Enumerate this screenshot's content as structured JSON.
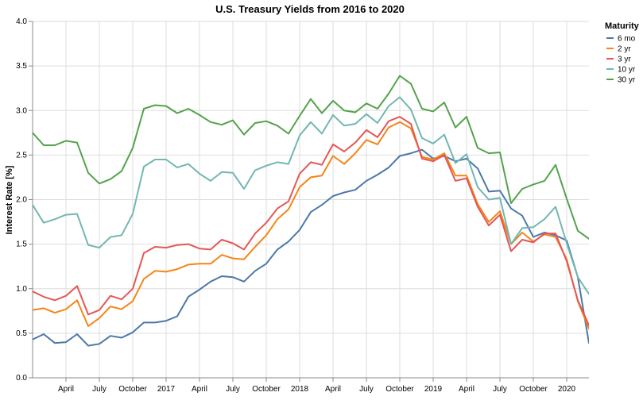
{
  "chart_data": {
    "type": "line",
    "title": "U.S. Treasury Yields from 2016 to 2020",
    "xlabel": "",
    "ylabel": "Interest Rate [%]",
    "ylim": [
      0,
      4
    ],
    "yticks": [
      "0.0",
      "0.5",
      "1.0",
      "1.5",
      "2.0",
      "2.5",
      "3.0",
      "3.5",
      "4.0"
    ],
    "xtick_labels": [
      "April",
      "July",
      "October",
      "2017",
      "April",
      "July",
      "October",
      "2018",
      "April",
      "July",
      "October",
      "2019",
      "April",
      "July",
      "October",
      "2020"
    ],
    "grid": true,
    "legend": {
      "title": "Maturity",
      "position": "right"
    },
    "x": [
      "2016-01",
      "2016-02",
      "2016-03",
      "2016-04",
      "2016-05",
      "2016-06",
      "2016-07",
      "2016-08",
      "2016-09",
      "2016-10",
      "2016-11",
      "2016-12",
      "2017-01",
      "2017-02",
      "2017-03",
      "2017-04",
      "2017-05",
      "2017-06",
      "2017-07",
      "2017-08",
      "2017-09",
      "2017-10",
      "2017-11",
      "2017-12",
      "2018-01",
      "2018-02",
      "2018-03",
      "2018-04",
      "2018-05",
      "2018-06",
      "2018-07",
      "2018-08",
      "2018-09",
      "2018-10",
      "2018-11",
      "2018-12",
      "2019-01",
      "2019-02",
      "2019-03",
      "2019-04",
      "2019-05",
      "2019-06",
      "2019-07",
      "2019-08",
      "2019-09",
      "2019-10",
      "2019-11",
      "2019-12",
      "2020-01",
      "2020-02",
      "2020-03",
      "2020-04",
      "2020-05"
    ],
    "series": [
      {
        "name": "6 mo",
        "color": "#4c78a8",
        "values": [
          0.43,
          0.49,
          0.39,
          0.4,
          0.49,
          0.36,
          0.38,
          0.47,
          0.45,
          0.51,
          0.62,
          0.62,
          0.64,
          0.69,
          0.91,
          0.99,
          1.08,
          1.14,
          1.13,
          1.08,
          1.2,
          1.28,
          1.44,
          1.53,
          1.66,
          1.86,
          1.94,
          2.04,
          2.08,
          2.11,
          2.21,
          2.28,
          2.36,
          2.49,
          2.52,
          2.56,
          2.46,
          2.49,
          2.43,
          2.46,
          2.35,
          2.09,
          2.1,
          1.9,
          1.82,
          1.58,
          1.63,
          1.6,
          1.54,
          1.13,
          0.39,
          null,
          null
        ]
      },
      {
        "name": "2 yr",
        "color": "#f58518",
        "values": [
          0.76,
          0.78,
          0.73,
          0.77,
          0.87,
          0.58,
          0.67,
          0.8,
          0.77,
          0.86,
          1.11,
          1.2,
          1.19,
          1.22,
          1.27,
          1.28,
          1.28,
          1.38,
          1.34,
          1.33,
          1.47,
          1.6,
          1.78,
          1.89,
          2.14,
          2.25,
          2.27,
          2.49,
          2.4,
          2.52,
          2.67,
          2.62,
          2.81,
          2.87,
          2.8,
          2.48,
          2.45,
          2.52,
          2.27,
          2.27,
          1.95,
          1.75,
          1.87,
          1.5,
          1.63,
          1.53,
          1.61,
          1.58,
          1.33,
          0.86,
          0.55,
          null,
          null
        ]
      },
      {
        "name": "3 yr",
        "color": "#e45756",
        "values": [
          0.97,
          0.91,
          0.87,
          0.92,
          1.03,
          0.71,
          0.76,
          0.92,
          0.88,
          1.0,
          1.4,
          1.47,
          1.46,
          1.49,
          1.5,
          1.45,
          1.44,
          1.55,
          1.51,
          1.44,
          1.62,
          1.74,
          1.9,
          1.98,
          2.29,
          2.42,
          2.39,
          2.62,
          2.54,
          2.64,
          2.78,
          2.7,
          2.88,
          2.93,
          2.85,
          2.46,
          2.43,
          2.5,
          2.21,
          2.24,
          1.92,
          1.71,
          1.83,
          1.42,
          1.55,
          1.52,
          1.62,
          1.62,
          1.31,
          0.87,
          0.59,
          null,
          null
        ]
      },
      {
        "name": "10 yr",
        "color": "#72b7b2",
        "values": [
          1.94,
          1.74,
          1.78,
          1.83,
          1.84,
          1.49,
          1.46,
          1.58,
          1.6,
          1.84,
          2.37,
          2.45,
          2.45,
          2.36,
          2.4,
          2.29,
          2.21,
          2.31,
          2.3,
          2.12,
          2.33,
          2.38,
          2.42,
          2.4,
          2.72,
          2.87,
          2.74,
          2.95,
          2.83,
          2.85,
          2.96,
          2.86,
          3.05,
          3.15,
          3.01,
          2.69,
          2.63,
          2.73,
          2.41,
          2.51,
          2.14,
          2.0,
          2.02,
          1.5,
          1.68,
          1.69,
          1.78,
          1.92,
          1.51,
          1.13,
          0.94,
          null,
          null
        ]
      },
      {
        "name": "30 yr",
        "color": "#54a24b",
        "values": [
          2.75,
          2.61,
          2.61,
          2.66,
          2.64,
          2.3,
          2.18,
          2.23,
          2.32,
          2.58,
          3.02,
          3.06,
          3.05,
          2.97,
          3.02,
          2.95,
          2.87,
          2.84,
          2.89,
          2.73,
          2.86,
          2.88,
          2.83,
          2.74,
          2.94,
          3.13,
          2.97,
          3.11,
          3.0,
          2.98,
          3.08,
          3.02,
          3.19,
          3.39,
          3.3,
          3.02,
          2.99,
          3.09,
          2.81,
          2.93,
          2.58,
          2.52,
          2.53,
          1.96,
          2.12,
          2.17,
          2.21,
          2.39,
          2.01,
          1.65,
          1.56,
          null,
          null
        ]
      }
    ]
  }
}
